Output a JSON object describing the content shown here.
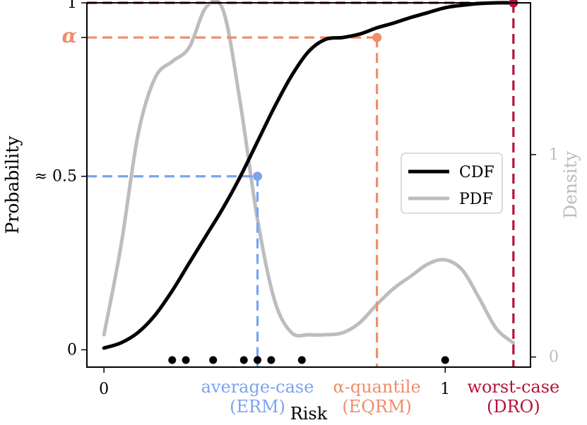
{
  "chart_data": {
    "type": "line",
    "xlabel": "Risk",
    "ylabel": "Probability",
    "y2label": "Density",
    "xlim": [
      -0.05,
      1.25
    ],
    "ylim": [
      -0.05,
      1.0
    ],
    "y2lim": [
      -0.05,
      1.75
    ],
    "x_ticks": [
      {
        "value": 0,
        "label": "0"
      },
      {
        "value": 1,
        "label": "1"
      }
    ],
    "y_ticks": [
      {
        "value": 0,
        "label": "0"
      },
      {
        "value": 0.5,
        "label": "≈ 0.5"
      },
      {
        "value": 0.9,
        "label": "α"
      },
      {
        "value": 1,
        "label": "1"
      }
    ],
    "y2_ticks": [
      {
        "value": 0,
        "label": "0"
      },
      {
        "value": 1,
        "label": "1"
      }
    ],
    "legend": {
      "position": "right",
      "entries": [
        "CDF",
        "PDF"
      ]
    },
    "series": [
      {
        "name": "CDF",
        "color": "#000000",
        "x": [
          0,
          0.05,
          0.1,
          0.15,
          0.2,
          0.25,
          0.3,
          0.35,
          0.4,
          0.45,
          0.5,
          0.55,
          0.6,
          0.65,
          0.7,
          0.75,
          0.8,
          0.85,
          0.9,
          0.95,
          1.0,
          1.05,
          1.1,
          1.15,
          1.2
        ],
        "y": [
          0.005,
          0.02,
          0.05,
          0.1,
          0.17,
          0.25,
          0.33,
          0.41,
          0.5,
          0.6,
          0.7,
          0.79,
          0.86,
          0.895,
          0.9,
          0.91,
          0.928,
          0.942,
          0.958,
          0.972,
          0.986,
          0.993,
          0.998,
          1.0,
          1.0
        ]
      },
      {
        "name": "PDF",
        "color": "#bdbdbd",
        "axis": "right",
        "x": [
          0,
          0.05,
          0.1,
          0.15,
          0.2,
          0.25,
          0.3,
          0.35,
          0.4,
          0.45,
          0.5,
          0.55,
          0.6,
          0.65,
          0.7,
          0.75,
          0.8,
          0.85,
          0.9,
          0.95,
          1.0,
          1.05,
          1.1,
          1.15,
          1.2
        ],
        "y": [
          0.11,
          0.55,
          1.1,
          1.38,
          1.46,
          1.53,
          1.73,
          1.71,
          1.25,
          0.68,
          0.28,
          0.12,
          0.11,
          0.11,
          0.12,
          0.17,
          0.26,
          0.34,
          0.4,
          0.46,
          0.48,
          0.43,
          0.29,
          0.14,
          0.07
        ]
      }
    ],
    "samples": [
      0.2,
      0.24,
      0.32,
      0.41,
      0.45,
      0.49,
      0.58,
      1.0
    ],
    "annotations": [
      {
        "label": "average-case",
        "sublabel": "(ERM)",
        "x": 0.45,
        "y": 0.5,
        "color": "#7ba3f0"
      },
      {
        "label": "α-quantile",
        "sublabel": "(EQRM)",
        "x": 0.8,
        "y": 0.9,
        "color": "#ef8d6c"
      },
      {
        "label": "worst-case",
        "sublabel": "(DRO)",
        "x": 1.2,
        "y": 1.0,
        "color": "#b5123a"
      }
    ]
  }
}
